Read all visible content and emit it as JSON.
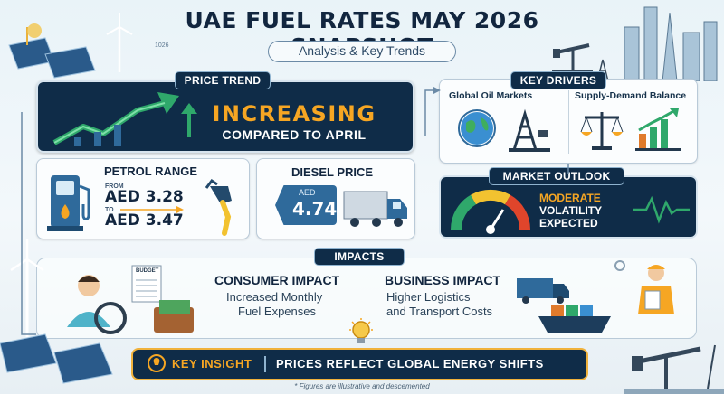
{
  "header": {
    "title": "UAE FUEL RATES MAY 2026 SNAPSHOT",
    "subtitle": "Analysis & Key Trends",
    "year_tag": "1026"
  },
  "price_trend": {
    "tab": "PRICE TREND",
    "headline": "INCREASING",
    "subline": "COMPARED TO APRIL"
  },
  "petrol": {
    "title": "PETROL RANGE",
    "from_label": "FROM",
    "low": "AED 3.28",
    "to_label": "TO",
    "high": "AED 3.47"
  },
  "diesel": {
    "title": "DIESEL PRICE",
    "currency": "AED",
    "value": "4.74"
  },
  "key_drivers": {
    "tab": "KEY DRIVERS",
    "items": [
      {
        "label": "Global Oil Markets",
        "icon": "globe-oil-rig-icon"
      },
      {
        "label": "Supply-Demand Balance",
        "icon": "scales-chart-icon"
      }
    ]
  },
  "market_outlook": {
    "tab": "MARKET OUTLOOK",
    "line1": "MODERATE",
    "line2": "VOLATILITY",
    "line3": "EXPECTED"
  },
  "impacts": {
    "tab": "IMPACTS",
    "budget_label": "BUDGET",
    "consumer": {
      "title": "CONSUMER IMPACT",
      "line1": "Increased Monthly",
      "line2": "Fuel Expenses"
    },
    "business": {
      "title": "BUSINESS IMPACT",
      "line1": "Higher Logistics",
      "line2": "and Transport Costs"
    }
  },
  "insight": {
    "key": "KEY INSIGHT",
    "message": "PRICES REFLECT GLOBAL ENERGY SHIFTS"
  },
  "footnote": "* Figures are illustrative and descemented",
  "colors": {
    "navy": "#0f2c48",
    "accent_orange": "#f6a623",
    "trend_green": "#2fa86b",
    "tag_blue": "#2f6a9b"
  }
}
